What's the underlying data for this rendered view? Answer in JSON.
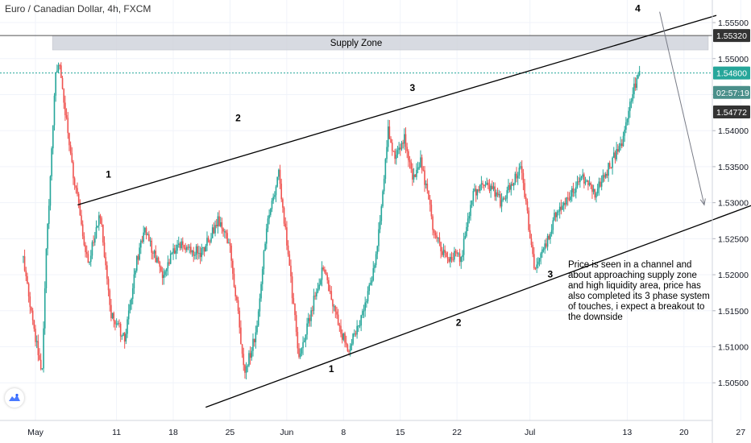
{
  "header": {
    "title": "Euro / Canadian Dollar, 4h, FXCM"
  },
  "colors": {
    "up": "#26a69a",
    "down": "#ef5350",
    "line": "#000000",
    "zone": "#d1d4dc",
    "priceTag": "#26a69a",
    "timerTag": "#4a8f8a",
    "greyTag": "#333333"
  },
  "chart_data": {
    "type": "candlestick",
    "title": "Euro / Canadian Dollar, 4h, FXCM",
    "ylim": [
      1.501,
      1.5578
    ],
    "y_ticks": [
      "1.55500",
      "1.55000",
      "1.54500",
      "1.54000",
      "1.53500",
      "1.53000",
      "1.52500",
      "1.52000",
      "1.51500",
      "1.51000",
      "1.50500"
    ],
    "y_tick_values": [
      1.555,
      1.55,
      1.545,
      1.54,
      1.535,
      1.53,
      1.525,
      1.52,
      1.515,
      1.51,
      1.505
    ],
    "x_ticks": [
      "May",
      "11",
      "18",
      "25",
      "Jun",
      "8",
      "15",
      "22",
      "Jul",
      "13",
      "20",
      "27"
    ],
    "x_tick_days": [
      0,
      10,
      17,
      24,
      31,
      38,
      45,
      52,
      61,
      73,
      80,
      87
    ],
    "price_path": [
      [
        -1.5,
        1.522
      ],
      [
        0.8,
        1.5055
      ],
      [
        1.2,
        1.52
      ],
      [
        2.0,
        1.537
      ],
      [
        2.5,
        1.548
      ],
      [
        3.0,
        1.5485
      ],
      [
        4.5,
        1.535
      ],
      [
        6.5,
        1.5215
      ],
      [
        8.0,
        1.5285
      ],
      [
        9.2,
        1.515
      ],
      [
        11.0,
        1.511
      ],
      [
        12.5,
        1.522
      ],
      [
        13.5,
        1.5265
      ],
      [
        15.5,
        1.52
      ],
      [
        17.5,
        1.524
      ],
      [
        20.5,
        1.523
      ],
      [
        22.5,
        1.5275
      ],
      [
        24.0,
        1.524
      ],
      [
        25.8,
        1.5065
      ],
      [
        27.2,
        1.512
      ],
      [
        28.5,
        1.5265
      ],
      [
        30.0,
        1.534
      ],
      [
        31.0,
        1.5245
      ],
      [
        32.5,
        1.5085
      ],
      [
        34.0,
        1.515
      ],
      [
        35.5,
        1.521
      ],
      [
        37.0,
        1.5145
      ],
      [
        38.5,
        1.5095
      ],
      [
        40.5,
        1.515
      ],
      [
        42.0,
        1.522
      ],
      [
        43.5,
        1.54
      ],
      [
        44.5,
        1.536
      ],
      [
        45.5,
        1.539
      ],
      [
        46.5,
        1.533
      ],
      [
        47.5,
        1.536
      ],
      [
        49.0,
        1.527
      ],
      [
        50.5,
        1.5225
      ],
      [
        52.5,
        1.5225
      ],
      [
        54.0,
        1.531
      ],
      [
        55.5,
        1.533
      ],
      [
        57.5,
        1.53
      ],
      [
        59.0,
        1.5335
      ],
      [
        60.0,
        1.5345
      ],
      [
        61.5,
        1.521
      ],
      [
        63.0,
        1.5245
      ],
      [
        64.0,
        1.528
      ],
      [
        66.0,
        1.531
      ],
      [
        67.5,
        1.5335
      ],
      [
        69.0,
        1.531
      ],
      [
        70.5,
        1.5345
      ],
      [
        71.5,
        1.5365
      ],
      [
        72.5,
        1.539
      ],
      [
        73.5,
        1.544
      ],
      [
        74.0,
        1.5465
      ],
      [
        74.6,
        1.5485
      ]
    ],
    "supply_zone": {
      "label": "Supply Zone",
      "from": 1.5512,
      "to": 1.5532,
      "start_day": 2.1,
      "end_day": 83.0
    },
    "channel_lines": [
      {
        "name": "upper",
        "points": [
          [
            5.2,
            1.5297
          ],
          [
            84.0,
            1.556
          ]
        ]
      },
      {
        "name": "lower",
        "points": [
          [
            21.0,
            1.5016
          ],
          [
            96.0,
            1.5328
          ]
        ]
      },
      {
        "name": "supply-top",
        "points": [
          [
            -2.0,
            1.5532
          ],
          [
            96.0,
            1.5532
          ]
        ]
      }
    ],
    "projection_arrow": {
      "from": [
        77.0,
        1.5565
      ],
      "to": [
        82.5,
        1.5297
      ]
    },
    "price_lines": [
      1.5532,
      1.548
    ],
    "labels": [
      {
        "text": "1",
        "day": 9.0,
        "price": 1.5335
      },
      {
        "text": "2",
        "day": 25.0,
        "price": 1.5413
      },
      {
        "text": "3",
        "day": 46.5,
        "price": 1.5455
      },
      {
        "text": "4",
        "day": 74.3,
        "price": 1.5565
      },
      {
        "text": "1",
        "day": 36.5,
        "price": 1.5065
      },
      {
        "text": "2",
        "day": 52.2,
        "price": 1.5129
      },
      {
        "text": "3",
        "day": 63.5,
        "price": 1.5196
      }
    ],
    "price_tags": [
      {
        "text": "1.55320",
        "price": 1.5532,
        "kind": "grey"
      },
      {
        "text": "1.54800",
        "price": 1.548,
        "kind": "green"
      },
      {
        "text": "02:57:19",
        "price": 1.5453,
        "kind": "timer"
      },
      {
        "text": "1.54772",
        "price": 1.5426,
        "kind": "grey"
      }
    ]
  },
  "annotation": {
    "lines": [
      "Price is seen in a channel and",
      "about approaching supply zone",
      "and high liquidity area, price has",
      "also completed its 3 phase system",
      "of touches, i expect  a breakout to",
      "the downside"
    ]
  }
}
